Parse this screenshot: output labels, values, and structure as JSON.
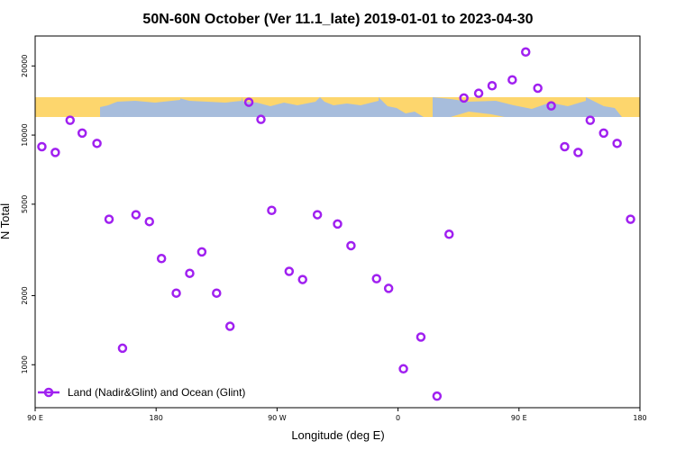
{
  "chart_data": {
    "type": "scatter",
    "title": "50N-60N October (Ver 11.1_late)   2019-01-01 to 2023-04-30",
    "xlabel": "Longitude (deg E)",
    "ylabel": "N Total",
    "xlim": [
      90,
      540
    ],
    "ylim": [
      650,
      27000
    ],
    "yscale": "log",
    "x_ticks": [
      {
        "value": 90,
        "label": "90 E"
      },
      {
        "value": 180,
        "label": "180"
      },
      {
        "value": 270,
        "label": "90 W"
      },
      {
        "value": 360,
        "label": "0"
      },
      {
        "value": 450,
        "label": "90 E"
      },
      {
        "value": 540,
        "label": "180"
      }
    ],
    "y_ticks": [
      {
        "value": 1000,
        "label": "1000"
      },
      {
        "value": 2000,
        "label": "2000"
      },
      {
        "value": 5000,
        "label": "5000"
      },
      {
        "value": 10000,
        "label": "10000"
      },
      {
        "value": 20000,
        "label": "20000"
      }
    ],
    "legend": {
      "position": "bottom-left"
    },
    "series": [
      {
        "name": "Land (Nadir&Glint) and Ocean (Glint)",
        "color": "#a020f0",
        "marker": "circle-open",
        "x": [
          95,
          105,
          116,
          125,
          136,
          145,
          155,
          165,
          175,
          184,
          195,
          205,
          214,
          225,
          235,
          249,
          258,
          266,
          279,
          289,
          300,
          315,
          325,
          344,
          353,
          364,
          377,
          389,
          398,
          409,
          420,
          430,
          445,
          455,
          464,
          474,
          484,
          494,
          503,
          513,
          523,
          533
        ],
        "y": [
          8900,
          8400,
          11600,
          10200,
          9200,
          4300,
          1180,
          4500,
          4200,
          2900,
          2050,
          2500,
          3100,
          2050,
          1470,
          13900,
          11700,
          4700,
          2550,
          2350,
          4500,
          4100,
          3300,
          2370,
          2150,
          960,
          1320,
          730,
          3700,
          14500,
          15200,
          16400,
          17400,
          23000,
          16000,
          13400,
          8900,
          8400,
          11600,
          10200,
          9200,
          4300
        ]
      }
    ]
  }
}
